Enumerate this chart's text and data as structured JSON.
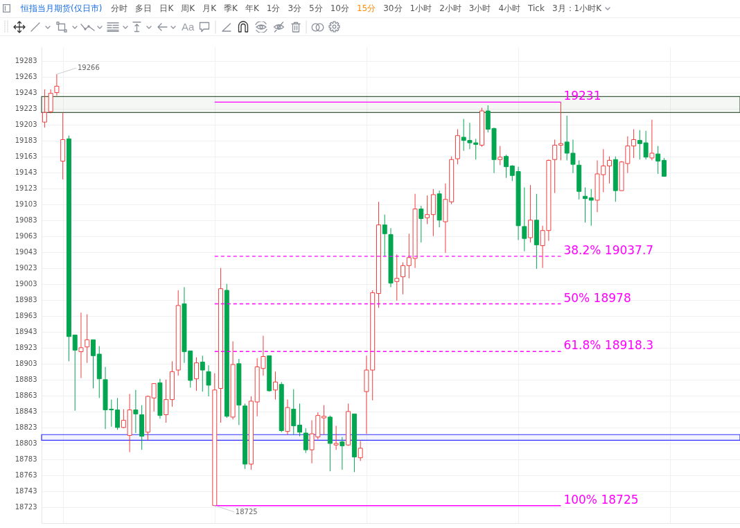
{
  "chart_data": {
    "type": "candlestick",
    "title": "恒指当月期货(仅日市)",
    "categories": [
      null,
      null,
      null,
      null,
      null,
      null,
      null,
      null,
      null,
      null,
      null,
      null,
      null,
      null,
      null,
      null,
      null,
      null,
      null,
      null,
      null,
      null,
      null,
      null,
      null,
      null,
      null,
      null,
      null,
      null,
      null,
      null,
      null,
      null,
      null,
      null,
      null,
      null,
      null,
      null,
      null,
      null,
      null,
      null,
      null,
      null,
      null,
      null,
      null,
      null,
      null,
      null,
      null,
      null,
      null,
      null,
      null,
      null,
      null,
      null,
      null,
      null,
      null,
      null,
      null,
      null,
      null,
      null,
      null,
      null,
      null,
      null,
      null,
      null,
      null,
      null,
      null,
      null,
      null,
      null,
      null,
      null,
      null,
      null,
      null,
      null,
      null,
      null,
      null,
      null,
      null,
      null,
      null,
      null,
      null,
      null,
      null,
      null,
      null,
      null,
      null,
      null,
      null,
      null,
      null,
      null,
      null,
      null,
      null,
      null,
      null,
      null,
      null,
      null,
      null
    ],
    "ohlc": [
      [
        19206,
        19247,
        19199,
        19218
      ],
      [
        19219,
        19247,
        19217,
        19242
      ],
      [
        19243,
        19266,
        19239,
        19251
      ],
      [
        19157,
        19218,
        19134,
        19184
      ],
      [
        19185,
        19189,
        18906,
        18937
      ],
      [
        18939,
        18939,
        18844,
        18920
      ],
      [
        18918,
        18967,
        18885,
        18923
      ],
      [
        18924,
        18965,
        18904,
        18933
      ],
      [
        18933,
        18933,
        18872,
        18913
      ],
      [
        18915,
        18925,
        18860,
        18884
      ],
      [
        18883,
        18899,
        18821,
        18845
      ],
      [
        18846,
        18858,
        18824,
        18845
      ],
      [
        18845,
        18860,
        18820,
        18823
      ],
      [
        18823,
        18846,
        18822,
        18832
      ],
      [
        18813,
        18865,
        18792,
        18845
      ],
      [
        18845,
        18870,
        18816,
        18840
      ],
      [
        18839,
        18851,
        18795,
        18812
      ],
      [
        18817,
        18863,
        18807,
        18862
      ],
      [
        18860,
        18878,
        18843,
        18878
      ],
      [
        18879,
        18884,
        18834,
        18838
      ],
      [
        18839,
        18883,
        18829,
        18858
      ],
      [
        18858,
        18906,
        18849,
        18893
      ],
      [
        18895,
        18995,
        18888,
        18976
      ],
      [
        18978,
        18999,
        18904,
        18918
      ],
      [
        18919,
        18919,
        18873,
        18882
      ],
      [
        18884,
        18911,
        18869,
        18904
      ],
      [
        18905,
        18913,
        18868,
        18895
      ],
      [
        18893,
        18901,
        18862,
        18876
      ],
      [
        18725,
        18891,
        18725,
        18870
      ],
      [
        18872,
        19023,
        18829,
        18997
      ],
      [
        18995,
        19003,
        18835,
        18837
      ],
      [
        18836,
        18931,
        18833,
        18902
      ],
      [
        18903,
        18909,
        18826,
        18851
      ],
      [
        18850,
        18853,
        18771,
        18777
      ],
      [
        18777,
        18862,
        18770,
        18856
      ],
      [
        18855,
        18910,
        18837,
        18899
      ],
      [
        18897,
        18938,
        18888,
        18912
      ],
      [
        18913,
        18913,
        18868,
        18869
      ],
      [
        18870,
        18893,
        18858,
        18880
      ],
      [
        18877,
        18880,
        18817,
        18819
      ],
      [
        18818,
        18858,
        18814,
        18848
      ],
      [
        18846,
        18871,
        18814,
        18825
      ],
      [
        18826,
        18853,
        18812,
        18817
      ],
      [
        18816,
        18822,
        18791,
        18795
      ],
      [
        18795,
        18832,
        18778,
        18815
      ],
      [
        18811,
        18842,
        18808,
        18838
      ],
      [
        18835,
        18851,
        18814,
        18837
      ],
      [
        18836,
        18838,
        18768,
        18803
      ],
      [
        18801,
        18825,
        18795,
        18803
      ],
      [
        18805,
        18811,
        18770,
        18800
      ],
      [
        18801,
        18853,
        18800,
        18843
      ],
      [
        18840,
        18840,
        18767,
        18786
      ],
      [
        18785,
        18806,
        18781,
        18797
      ],
      [
        18868,
        18913,
        18815,
        18895
      ],
      [
        18895,
        18995,
        18857,
        18992
      ],
      [
        18991,
        19106,
        18973,
        19077
      ],
      [
        19077,
        19090,
        19037,
        19066
      ],
      [
        19065,
        19073,
        18999,
        19004
      ],
      [
        19006,
        19040,
        18982,
        19010
      ],
      [
        19012,
        19030,
        18990,
        19026
      ],
      [
        19026,
        19066,
        19010,
        19036
      ],
      [
        19035,
        19116,
        19023,
        19097
      ],
      [
        19097,
        19101,
        19055,
        19085
      ],
      [
        19086,
        19114,
        19078,
        19090
      ],
      [
        19090,
        19122,
        19063,
        19115
      ],
      [
        19116,
        19120,
        19074,
        19083
      ],
      [
        19081,
        19129,
        19042,
        19109
      ],
      [
        19106,
        19163,
        19103,
        19159
      ],
      [
        19160,
        19197,
        19153,
        19189
      ],
      [
        19187,
        19210,
        19170,
        19183
      ],
      [
        19183,
        19205,
        19172,
        19180
      ],
      [
        19180,
        19185,
        19159,
        19178
      ],
      [
        19177,
        19224,
        19175,
        19220
      ],
      [
        19220,
        19227,
        19193,
        19197
      ],
      [
        19198,
        19199,
        19142,
        19159
      ],
      [
        19159,
        19176,
        19152,
        19162
      ],
      [
        19163,
        19165,
        19136,
        19150
      ],
      [
        19151,
        19152,
        19132,
        19139
      ],
      [
        19144,
        19150,
        19058,
        19076
      ],
      [
        19075,
        19124,
        19044,
        19060
      ],
      [
        19061,
        19127,
        19055,
        19083
      ],
      [
        19083,
        19116,
        19022,
        19052
      ],
      [
        19051,
        19076,
        19023,
        19070
      ],
      [
        19070,
        19159,
        19057,
        19158
      ],
      [
        19159,
        19184,
        19117,
        19177
      ],
      [
        19177,
        19231,
        19158,
        19179
      ],
      [
        19181,
        19214,
        19158,
        19167
      ],
      [
        19167,
        19184,
        19142,
        19153
      ],
      [
        19152,
        19158,
        19109,
        19119
      ],
      [
        19113,
        19124,
        19080,
        19110
      ],
      [
        19111,
        19122,
        19076,
        19108
      ],
      [
        19108,
        19158,
        19093,
        19141
      ],
      [
        19140,
        19172,
        19118,
        19151
      ],
      [
        19151,
        19163,
        19129,
        19158
      ],
      [
        19159,
        19163,
        19106,
        19120
      ],
      [
        19120,
        19157,
        19120,
        19156
      ],
      [
        19154,
        19188,
        19142,
        19176
      ],
      [
        19176,
        19197,
        19161,
        19184
      ],
      [
        19183,
        19196,
        19159,
        19179
      ],
      [
        19180,
        19195,
        19159,
        19162
      ],
      [
        19161,
        19209,
        19158,
        19167
      ],
      [
        19166,
        19176,
        19141,
        19157
      ],
      [
        19158,
        19161,
        19138,
        19138
      ],
      null,
      null,
      null,
      null,
      null,
      null,
      null,
      null,
      null,
      null,
      null,
      null
    ],
    "colors": [
      "#f23c3c",
      "#f23c3c",
      "#f23c3c",
      "#f23c3c",
      "#03a650",
      "#03a650",
      "#f23c3c",
      "#f23c3c",
      "#03a650",
      "#03a650",
      "#03a650",
      "#03a650",
      "#03a650",
      "#f23c3c",
      "#f23c3c",
      "#03a650",
      "#03a650",
      "#f23c3c",
      "#f23c3c",
      "#03a650",
      "#f23c3c",
      "#f23c3c",
      "#f23c3c",
      "#03a650",
      "#03a650",
      "#f23c3c",
      "#03a650",
      "#03a650",
      "#f23c3c",
      "#f23c3c",
      "#03a650",
      "#f23c3c",
      "#03a650",
      "#03a650",
      "#f23c3c",
      "#f23c3c",
      "#f23c3c",
      "#03a650",
      "#f23c3c",
      "#03a650",
      "#f23c3c",
      "#03a650",
      "#03a650",
      "#03a650",
      "#f23c3c",
      "#f23c3c",
      "#f23c3c",
      "#03a650",
      "#f23c3c",
      "#03a650",
      "#f23c3c",
      "#03a650",
      "#f23c3c",
      "#f23c3c",
      "#f23c3c",
      "#f23c3c",
      "#03a650",
      "#03a650",
      "#f23c3c",
      "#f23c3c",
      "#f23c3c",
      "#f23c3c",
      "#03a650",
      "#f23c3c",
      "#f23c3c",
      "#03a650",
      "#f23c3c",
      "#f23c3c",
      "#f23c3c",
      "#03a650",
      "#03a650",
      "#03a650",
      "#f23c3c",
      "#03a650",
      "#03a650",
      "#f23c3c",
      "#03a650",
      "#03a650",
      "#03a650",
      "#03a650",
      "#f23c3c",
      "#03a650",
      "#f23c3c",
      "#f23c3c",
      "#f23c3c",
      "#f23c3c",
      "#03a650",
      "#03a650",
      "#03a650",
      "#03a650",
      "#03a650",
      "#f23c3c",
      "#f23c3c",
      "#f23c3c",
      "#03a650",
      "#f23c3c",
      "#f23c3c",
      "#f23c3c",
      "#03a650",
      "#03a650",
      "#f23c3c",
      "#03a650",
      "#03a650",
      null,
      null,
      null,
      null,
      null,
      null,
      null,
      null,
      null,
      null,
      null,
      null
    ],
    "ylim": [
      18703,
      19300
    ],
    "yticks": [
      18723,
      18743,
      18763,
      18783,
      18803,
      18823,
      18843,
      18863,
      18883,
      18903,
      18923,
      18943,
      18963,
      18983,
      19003,
      19023,
      19043,
      19063,
      19083,
      19103,
      19123,
      19143,
      19163,
      19183,
      19203,
      19223,
      19243,
      19263,
      19283
    ],
    "grid": true,
    "tick_labels": "y",
    "ref_lines": [
      {
        "axis": "y",
        "value": 19231,
        "label": "19231",
        "color": "#ff00ff",
        "line_style": "solid"
      },
      {
        "axis": "y",
        "value": 19037.7,
        "label": "38.2% 19037.7",
        "color": "#ff00ff",
        "line_style": "dashed"
      },
      {
        "axis": "y",
        "value": 18978,
        "label": "50% 18978",
        "color": "#ff00ff",
        "line_style": "dashed"
      },
      {
        "axis": "y",
        "value": 18918.3,
        "label": "61.8% 18918.3",
        "color": "#ff00ff",
        "line_style": "dashed"
      },
      {
        "axis": "y",
        "value": 18725,
        "label": "100% 18725",
        "color": "#ff00ff",
        "line_style": "solid"
      }
    ],
    "bands": [
      {
        "axis": "y",
        "from": 19218,
        "to": 19238,
        "color": "#3d5c3d"
      },
      {
        "axis": "y",
        "from": 18807,
        "to": 18814,
        "color": "#2f2fff"
      }
    ],
    "annotations": [
      "19266",
      "18725",
      "分时",
      "多日",
      "日K",
      "周K",
      "月K",
      "季K",
      "年K",
      "1分",
      "3分",
      "5分",
      "10分",
      "15分",
      "30分",
      "1小时",
      "2小时",
      "3小时",
      "4小时",
      "Tick",
      "3月：1小时K",
      "Aa"
    ]
  }
}
